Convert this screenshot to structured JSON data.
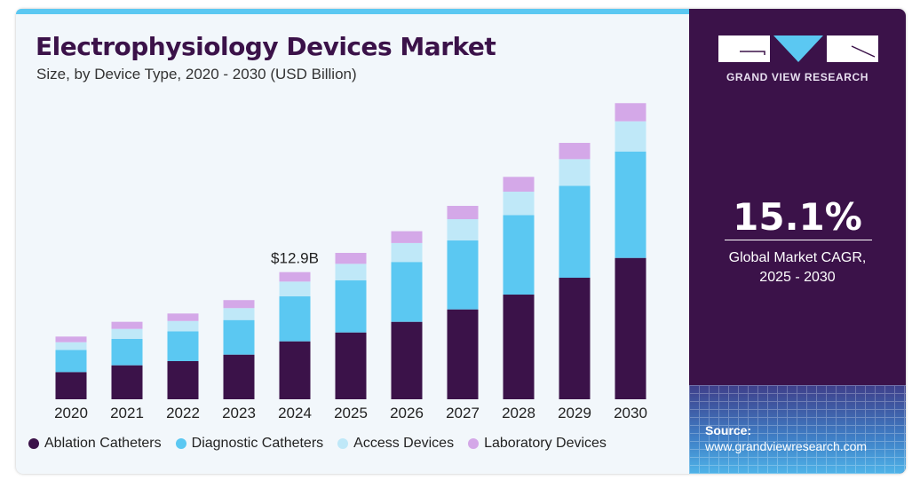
{
  "header": {
    "title": "Electrophysiology Devices Market",
    "subtitle": "Size, by Device Type, 2020 - 2030 (USD Billion)"
  },
  "side_panel": {
    "brand": "GRAND VIEW RESEARCH",
    "cagr_value": "15.1%",
    "cagr_label_line1": "Global Market CAGR,",
    "cagr_label_line2": "2025 - 2030",
    "source_label": "Source:",
    "source_url": "www.grandviewresearch.com",
    "colors": {
      "background": "#3b1249",
      "logo_triangle": "#5bc8f2"
    }
  },
  "chart_data": {
    "type": "bar",
    "stacked": true,
    "title": "Electrophysiology Devices Market",
    "subtitle": "Size, by Device Type, 2020 - 2030 (USD Billion)",
    "categories": [
      "2020",
      "2021",
      "2022",
      "2023",
      "2024",
      "2025",
      "2026",
      "2027",
      "2028",
      "2029",
      "2030"
    ],
    "series": [
      {
        "name": "Ablation Catheters",
        "color": "#3b1249",
        "values": [
          2.76,
          3.45,
          3.87,
          4.53,
          5.88,
          6.78,
          7.86,
          9.12,
          10.62,
          12.33,
          14.34
        ]
      },
      {
        "name": "Diagnostic Catheters",
        "color": "#5bc8f2",
        "values": [
          2.25,
          2.67,
          3.03,
          3.51,
          4.56,
          5.28,
          6.07,
          6.99,
          8.07,
          9.33,
          10.8
        ]
      },
      {
        "name": "Access Devices",
        "color": "#bfe8f8",
        "values": [
          0.78,
          1.02,
          1.04,
          1.21,
          1.5,
          1.68,
          1.92,
          2.16,
          2.37,
          2.7,
          3.06
        ]
      },
      {
        "name": "Laboratory Devices",
        "color": "#d4a8e8",
        "values": [
          0.57,
          0.72,
          0.76,
          0.81,
          0.96,
          1.11,
          1.2,
          1.35,
          1.5,
          1.65,
          1.84
        ]
      }
    ],
    "annotations": [
      {
        "category": "2024",
        "text": "$12.9B"
      }
    ],
    "xlabel": "",
    "ylabel": "",
    "ylim": [
      0,
      32
    ],
    "grid": false,
    "legend_position": "bottom"
  }
}
